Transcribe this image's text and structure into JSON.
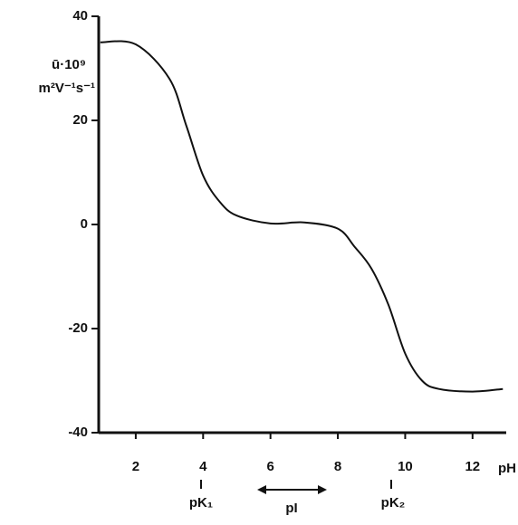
{
  "chart_data": {
    "type": "line",
    "y_label_lines": [
      "ū·10⁹",
      "m²V⁻¹s⁻¹"
    ],
    "x_label": "pH",
    "annotations": [
      "pK₁",
      "pI",
      "pK₂"
    ],
    "x": [
      0.95,
      2,
      3,
      3.5,
      4,
      4.5,
      5,
      6,
      7,
      8,
      8.5,
      9,
      9.5,
      10,
      10.5,
      11,
      12,
      12.9
    ],
    "values": [
      35,
      34.6,
      28,
      19,
      9.4,
      4.3,
      1.7,
      0.2,
      0.4,
      -0.8,
      -4.3,
      -8.5,
      -15.4,
      -24.8,
      -30,
      -31.6,
      -32.1,
      -31.6
    ],
    "color": "#111111",
    "xlim": [
      0.9,
      13
    ],
    "xticks": [
      2,
      4,
      6,
      8,
      10,
      12
    ],
    "ylim": [
      -40,
      40
    ],
    "yticks": [
      -40,
      -20,
      0,
      20,
      40
    ],
    "grid": false
  }
}
